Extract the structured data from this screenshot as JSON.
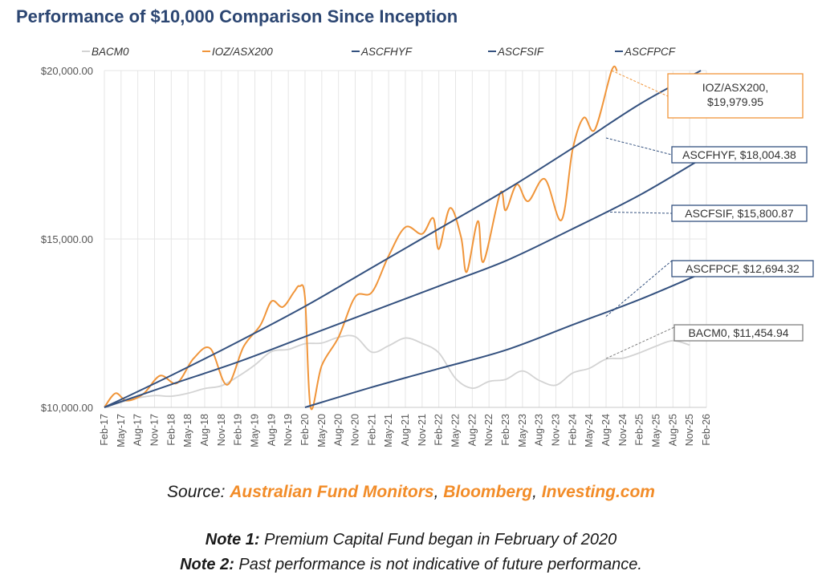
{
  "chart_data": {
    "type": "line",
    "title": "Performance of $10,000 Comparison Since Inception",
    "ylim": [
      10000,
      20000
    ],
    "y_ticks": [
      "$10,000.00",
      "$15,000.00",
      "$20,000.00"
    ],
    "y_tick_values": [
      10000,
      15000,
      20000
    ],
    "x_tick_labels": [
      "Feb-17",
      "May-17",
      "Aug-17",
      "Nov-17",
      "Feb-18",
      "May-18",
      "Aug-18",
      "Nov-18",
      "Feb-19",
      "May-19",
      "Aug-19",
      "Nov-19",
      "Feb-20",
      "May-20",
      "Aug-20",
      "Nov-20",
      "Feb-21",
      "May-21",
      "Aug-21",
      "Nov-21",
      "Feb-22",
      "May-22",
      "Aug-22",
      "Nov-22",
      "Feb-23",
      "May-23",
      "Aug-23",
      "Nov-23",
      "Feb-24",
      "May-24",
      "Aug-24",
      "Nov-24",
      "Feb-25",
      "May-25",
      "Aug-25",
      "Nov-25",
      "Feb-26"
    ],
    "grid": true,
    "legend": "top",
    "series": [
      {
        "name": "BACM0",
        "color": "#d3d3d3",
        "points": [
          [
            "Feb-17",
            10000
          ],
          [
            "May-17",
            10150
          ],
          [
            "Aug-17",
            10280
          ],
          [
            "Nov-17",
            10350
          ],
          [
            "Feb-18",
            10330
          ],
          [
            "May-18",
            10420
          ],
          [
            "Aug-18",
            10560
          ],
          [
            "Nov-18",
            10640
          ],
          [
            "Feb-19",
            10920
          ],
          [
            "May-19",
            11260
          ],
          [
            "Aug-19",
            11660
          ],
          [
            "Nov-19",
            11720
          ],
          [
            "Feb-20",
            11890
          ],
          [
            "May-20",
            11910
          ],
          [
            "Aug-20",
            12080
          ],
          [
            "Nov-20",
            12100
          ],
          [
            "Feb-21",
            11640
          ],
          [
            "May-21",
            11830
          ],
          [
            "Aug-21",
            12060
          ],
          [
            "Nov-21",
            11900
          ],
          [
            "Feb-22",
            11620
          ],
          [
            "May-22",
            10860
          ],
          [
            "Aug-22",
            10570
          ],
          [
            "Nov-22",
            10770
          ],
          [
            "Feb-23",
            10830
          ],
          [
            "May-23",
            11080
          ],
          [
            "Aug-23",
            10800
          ],
          [
            "Nov-23",
            10660
          ],
          [
            "Feb-24",
            11020
          ],
          [
            "May-24",
            11160
          ],
          [
            "Aug-24",
            11430
          ],
          [
            "Nov-24",
            11460
          ],
          [
            "Feb-25",
            11620
          ],
          [
            "May-25",
            11820
          ],
          [
            "Aug-25",
            11980
          ],
          [
            "Nov-25",
            11850
          ]
        ]
      },
      {
        "name": "IOZ/ASX200",
        "color": "#f0953a",
        "points": [
          [
            "Feb-17",
            10000
          ],
          [
            "Apr-17",
            10420
          ],
          [
            "Jun-17",
            10200
          ],
          [
            "Sep-17",
            10400
          ],
          [
            "Dec-17",
            10940
          ],
          [
            "Mar-18",
            10720
          ],
          [
            "Jun-18",
            11450
          ],
          [
            "Sep-18",
            11750
          ],
          [
            "Dec-18",
            10670
          ],
          [
            "Mar-19",
            11810
          ],
          [
            "Jun-19",
            12440
          ],
          [
            "Aug-19",
            13150
          ],
          [
            "Oct-19",
            12980
          ],
          [
            "Dec-19",
            13420
          ],
          [
            "Jan-20",
            13600
          ],
          [
            "Feb-20",
            13240
          ],
          [
            "Mar-20",
            10000
          ],
          [
            "May-20",
            11240
          ],
          [
            "Aug-20",
            12080
          ],
          [
            "Nov-20",
            13280
          ],
          [
            "Feb-21",
            13420
          ],
          [
            "May-21",
            14500
          ],
          [
            "Aug-21",
            15350
          ],
          [
            "Nov-21",
            15150
          ],
          [
            "Jan-22",
            15620
          ],
          [
            "Feb-22",
            14700
          ],
          [
            "Apr-22",
            15920
          ],
          [
            "Jun-22",
            15050
          ],
          [
            "Jul-22",
            14020
          ],
          [
            "Sep-22",
            15530
          ],
          [
            "Oct-22",
            14320
          ],
          [
            "Jan-23",
            16360
          ],
          [
            "Feb-23",
            15850
          ],
          [
            "Apr-23",
            16620
          ],
          [
            "Jun-23",
            16120
          ],
          [
            "Sep-23",
            16780
          ],
          [
            "Dec-23",
            15560
          ],
          [
            "Feb-24",
            17650
          ],
          [
            "Apr-24",
            18600
          ],
          [
            "Jun-24",
            18250
          ],
          [
            "Sep-24",
            20000
          ],
          [
            "Oct-24",
            19980
          ]
        ]
      },
      {
        "name": "ASCFHYF",
        "color": "#34517f",
        "points": [
          [
            "Feb-17",
            10000
          ],
          [
            "Feb-18",
            10950
          ],
          [
            "Feb-19",
            11950
          ],
          [
            "Feb-20",
            13000
          ],
          [
            "Feb-21",
            14150
          ],
          [
            "Feb-22",
            15300
          ],
          [
            "Feb-23",
            16450
          ],
          [
            "Feb-24",
            17700
          ],
          [
            "Feb-25",
            19000
          ],
          [
            "Jan-26",
            20000
          ]
        ]
      },
      {
        "name": "ASCFSIF",
        "color": "#34517f",
        "points": [
          [
            "Feb-17",
            10000
          ],
          [
            "Feb-18",
            10680
          ],
          [
            "Feb-19",
            11350
          ],
          [
            "Feb-20",
            12100
          ],
          [
            "Feb-21",
            12850
          ],
          [
            "Feb-22",
            13600
          ],
          [
            "Feb-23",
            14350
          ],
          [
            "Feb-24",
            15300
          ],
          [
            "Feb-25",
            16300
          ],
          [
            "Jan-26",
            17370
          ]
        ]
      },
      {
        "name": "ASCFPCF",
        "color": "#34517f",
        "points": [
          [
            "Feb-20",
            10000
          ],
          [
            "Feb-21",
            10600
          ],
          [
            "Feb-22",
            11150
          ],
          [
            "Feb-23",
            11700
          ],
          [
            "Feb-24",
            12450
          ],
          [
            "Feb-25",
            13200
          ],
          [
            "Jan-26",
            13970
          ]
        ]
      }
    ],
    "annotations": [
      {
        "name": "IOZ/ASX200",
        "label": "IOZ/ASX200,\n$19,979.95",
        "color": "#f0953a",
        "date": "Sep-24",
        "value": 20000
      },
      {
        "name": "ASCFHYF",
        "label": "ASCFHYF,  $18,004.38",
        "color": "#34517f",
        "date": "Aug-24",
        "value": 18000
      },
      {
        "name": "ASCFSIF",
        "label": "ASCFSIF,  $15,800.87",
        "color": "#34517f",
        "date": "Aug-24",
        "value": 15800
      },
      {
        "name": "ASCFPCF",
        "label": "ASCFPCF,  $12,694.32",
        "color": "#34517f",
        "date": "Aug-24",
        "value": 12700
      },
      {
        "name": "BACM0",
        "label": "BACM0,  $11,454.94",
        "color": "#7f7f7f",
        "date": "Aug-24",
        "value": 11450
      }
    ]
  },
  "footer": {
    "source_prefix": "Source: ",
    "sources": [
      "Australian Fund Monitors",
      "Bloomberg",
      "Investing.com"
    ],
    "note1_label": "Note 1:",
    "note1_text": " Premium Capital Fund began in February of 2020",
    "note2_label": "Note 2:",
    "note2_text": " Past performance is not indicative of future performance."
  }
}
